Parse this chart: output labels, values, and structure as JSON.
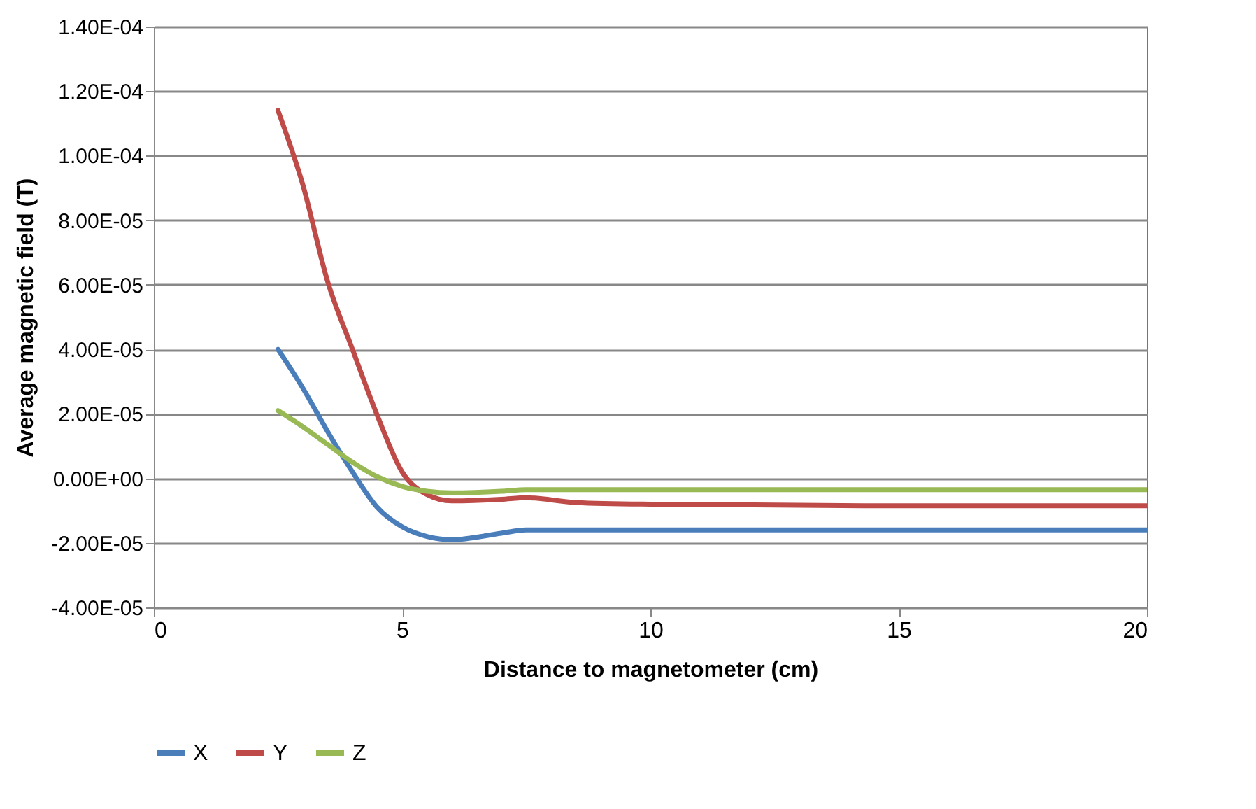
{
  "chart_data": {
    "type": "line",
    "xlabel": "Distance to magnetometer (cm)",
    "ylabel": "Average magnetic field (T)",
    "x": [
      2.5,
      3,
      3.5,
      4,
      4.5,
      5,
      5.5,
      6,
      7,
      7.5,
      8.5,
      10,
      15,
      20
    ],
    "series": [
      {
        "name": "X",
        "color": "#4a7ebb",
        "values": [
          4e-05,
          2.8e-05,
          1.45e-05,
          2e-06,
          -9e-06,
          -1.5e-05,
          -1.8e-05,
          -1.9e-05,
          -1.7e-05,
          -1.6e-05,
          -1.6e-05,
          -1.6e-05,
          -1.6e-05,
          -1.6e-05
        ]
      },
      {
        "name": "Y",
        "color": "#be4b48",
        "values": [
          0.000114,
          9.1e-05,
          6.1e-05,
          4e-05,
          1.95e-05,
          2e-06,
          -5e-06,
          -7e-06,
          -6.5e-06,
          -6e-06,
          -7.5e-06,
          -8e-06,
          -8.5e-06,
          -8.5e-06
        ]
      },
      {
        "name": "Z",
        "color": "#98b954",
        "values": [
          2.1e-05,
          1.6e-05,
          1.05e-05,
          5e-06,
          5e-07,
          -2.5e-06,
          -4e-06,
          -4.5e-06,
          -4e-06,
          -3.5e-06,
          -3.5e-06,
          -3.5e-06,
          -3.5e-06,
          -3.5e-06
        ]
      }
    ],
    "xlim": [
      0,
      20
    ],
    "xticks": [
      0,
      5,
      10,
      15,
      20
    ],
    "ylim": [
      -4e-05,
      0.00014
    ],
    "yticks": [
      {
        "value": -4e-05,
        "label": "-4.00E-05"
      },
      {
        "value": -2e-05,
        "label": "-2.00E-05"
      },
      {
        "value": 0,
        "label": "0.00E+00"
      },
      {
        "value": 2e-05,
        "label": "2.00E-05"
      },
      {
        "value": 4e-05,
        "label": "4.00E-05"
      },
      {
        "value": 6e-05,
        "label": "6.00E-05"
      },
      {
        "value": 8e-05,
        "label": "8.00E-05"
      },
      {
        "value": 0.0001,
        "label": "1.00E-04"
      },
      {
        "value": 0.00012,
        "label": "1.20E-04"
      },
      {
        "value": 0.00014,
        "label": "1.40E-04"
      }
    ],
    "grid": "y",
    "legend": "bottom",
    "marker": "none",
    "line_style": "solid"
  }
}
